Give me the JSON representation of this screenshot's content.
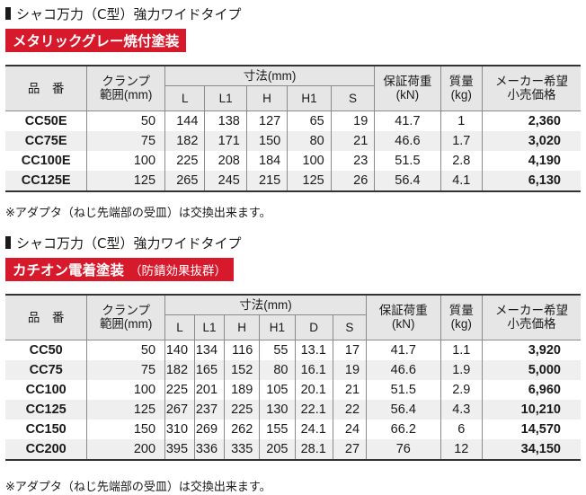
{
  "section1": {
    "heading": "シャコ万力（C型）強力ワイドタイプ",
    "banner": "メタリックグレー焼付塗装",
    "banner_sub": "",
    "header": {
      "item": "品　番",
      "clamp_top": "クランプ",
      "clamp_bottom": "範囲(mm)",
      "dims": "寸法(mm)",
      "cols": [
        "L",
        "L1",
        "H",
        "H1",
        "S"
      ],
      "load_top": "保証荷重",
      "load_bottom": "(kN)",
      "mass_top": "質量",
      "mass_bottom": "(kg)",
      "price_top": "メーカー希望",
      "price_bottom": "小売価格"
    },
    "rows": [
      {
        "code": "CC50E",
        "range": "50",
        "d": [
          "144",
          "138",
          "127",
          "65",
          "19"
        ],
        "load": "41.7",
        "mass": "1",
        "price": "2,360"
      },
      {
        "code": "CC75E",
        "range": "75",
        "d": [
          "182",
          "171",
          "150",
          "80",
          "21"
        ],
        "load": "46.6",
        "mass": "1.7",
        "price": "3,020"
      },
      {
        "code": "CC100E",
        "range": "100",
        "d": [
          "225",
          "208",
          "184",
          "100",
          "23"
        ],
        "load": "51.5",
        "mass": "2.8",
        "price": "4,190"
      },
      {
        "code": "CC125E",
        "range": "125",
        "d": [
          "265",
          "245",
          "215",
          "125",
          "26"
        ],
        "load": "56.4",
        "mass": "4.1",
        "price": "6,130"
      }
    ],
    "note": "※アダプタ（ねじ先端部の受皿）は交換出来ます。"
  },
  "section2": {
    "heading": "シャコ万力（C型）強力ワイドタイプ",
    "banner": "カチオン電着塗装",
    "banner_sub": "（防錆効果抜群）",
    "header": {
      "item": "品　番",
      "clamp_top": "クランプ",
      "clamp_bottom": "範囲(mm)",
      "dims": "寸法(mm)",
      "cols": [
        "L",
        "L1",
        "H",
        "H1",
        "D",
        "S"
      ],
      "load_top": "保証荷重",
      "load_bottom": "(kN)",
      "mass_top": "質量",
      "mass_bottom": "(kg)",
      "price_top": "メーカー希望",
      "price_bottom": "小売価格"
    },
    "rows": [
      {
        "code": "CC50",
        "range": "50",
        "d": [
          "140",
          "134",
          "116",
          "55",
          "13.1",
          "17"
        ],
        "load": "41.7",
        "mass": "1.1",
        "price": "3,920"
      },
      {
        "code": "CC75",
        "range": "75",
        "d": [
          "182",
          "165",
          "152",
          "80",
          "16.1",
          "19"
        ],
        "load": "46.6",
        "mass": "1.9",
        "price": "5,000"
      },
      {
        "code": "CC100",
        "range": "100",
        "d": [
          "225",
          "201",
          "189",
          "105",
          "20.1",
          "21"
        ],
        "load": "51.5",
        "mass": "2.9",
        "price": "6,960"
      },
      {
        "code": "CC125",
        "range": "125",
        "d": [
          "267",
          "237",
          "225",
          "130",
          "22.1",
          "22"
        ],
        "load": "56.4",
        "mass": "4.3",
        "price": "10,210"
      },
      {
        "code": "CC150",
        "range": "150",
        "d": [
          "310",
          "269",
          "262",
          "155",
          "24.1",
          "24"
        ],
        "load": "66.2",
        "mass": "6",
        "price": "14,570"
      },
      {
        "code": "CC200",
        "range": "200",
        "d": [
          "395",
          "336",
          "335",
          "205",
          "28.1",
          "27"
        ],
        "load": "76",
        "mass": "12",
        "price": "34,150"
      }
    ],
    "note": "※アダプタ（ねじ先端部の受皿）は交換出来ます。"
  }
}
